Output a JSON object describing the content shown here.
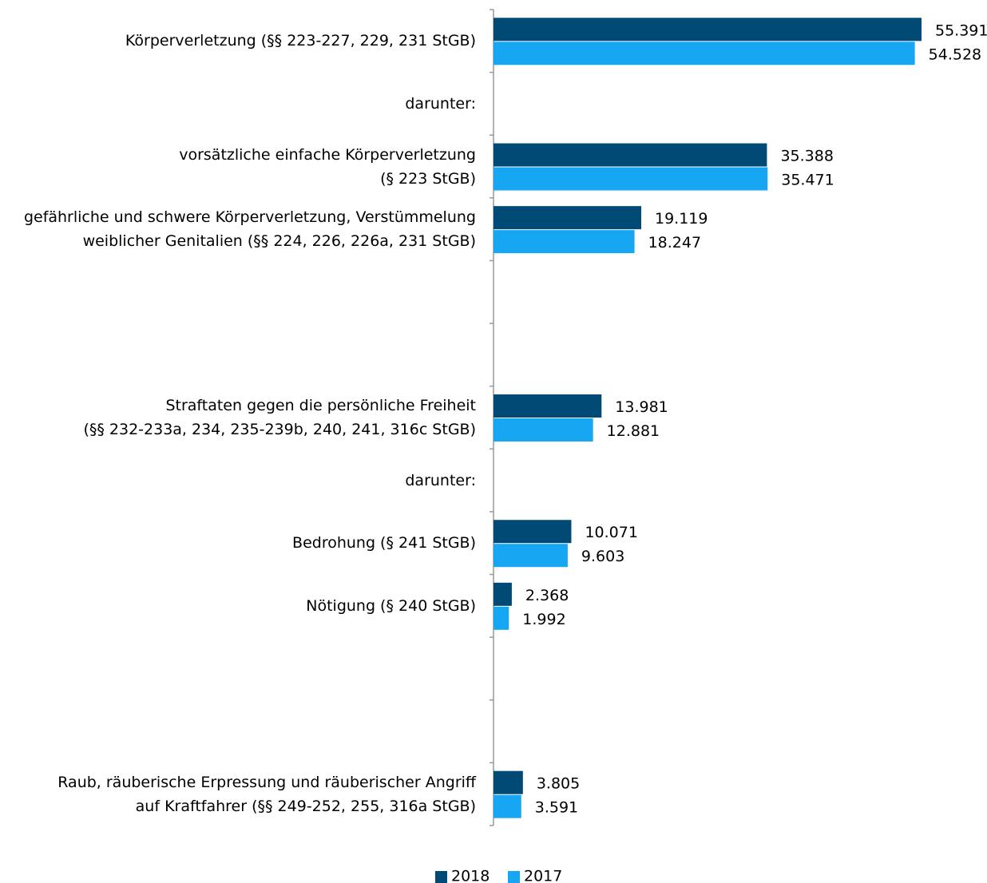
{
  "chart_data": {
    "type": "bar",
    "orientation": "horizontal",
    "categories": [
      "Körperverletzung (§§ 223-227, 229, 231 StGB)",
      "darunter:",
      "vorsätzliche einfache Körperverletzung\n(§ 223 StGB)",
      "gefährliche und schwere Körperverletzung, Verstümmelung\nweiblicher Genitalien (§§ 224, 226, 226a, 231 StGB)",
      null,
      null,
      "Straftaten gegen die persönliche Freiheit\n(§§ 232-233a, 234, 235-239b, 240, 241, 316c StGB)",
      "darunter:",
      "Bedrohung (§ 241 StGB)",
      "Nötigung (§ 240 StGB)",
      null,
      null,
      "Raub, räuberische Erpressung und räuberischer Angriff\nauf Kraftfahrer (§§ 249-252, 255, 316a StGB)"
    ],
    "series": [
      {
        "name": "2018",
        "color": "#004a75",
        "values": [
          55391,
          null,
          35388,
          19119,
          null,
          null,
          13981,
          null,
          10071,
          2368,
          null,
          null,
          3805
        ],
        "value_labels": [
          "55.391",
          null,
          "35.388",
          "19.119",
          null,
          null,
          "13.981",
          null,
          "10.071",
          "2.368",
          null,
          null,
          "3.805"
        ]
      },
      {
        "name": "2017",
        "color": "#17a7f2",
        "values": [
          54528,
          null,
          35471,
          18247,
          null,
          null,
          12881,
          null,
          9603,
          1992,
          null,
          null,
          3591
        ],
        "value_labels": [
          "54.528",
          null,
          "35.471",
          "18.247",
          null,
          null,
          "12.881",
          null,
          "9.603",
          "1.992",
          null,
          null,
          "3.591"
        ]
      }
    ],
    "xlim": [
      0,
      60000
    ],
    "legend": "bottom"
  }
}
